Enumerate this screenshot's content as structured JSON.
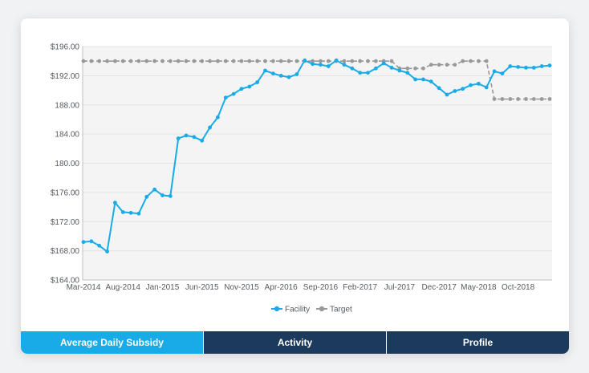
{
  "chart_data": {
    "type": "line",
    "title": "",
    "xlabel": "",
    "ylabel": "",
    "ylim": [
      164,
      196
    ],
    "y_ticks": [
      "$196.00",
      "$192.00",
      "188.00",
      "184.00",
      "180.00",
      "$176.00",
      "$172.00",
      "$168.00",
      "$164.00"
    ],
    "y_tick_values": [
      196,
      192,
      188,
      184,
      180,
      176,
      172,
      168,
      164
    ],
    "x_labels": [
      "Mar-2014",
      "Aug-2014",
      "Jan-2015",
      "Jun-2015",
      "Nov-2015",
      "Apr-2016",
      "Sep-2016",
      "Feb-2017",
      "Jul-2017",
      "Dec-2017",
      "May-2018",
      "Oct-2018"
    ],
    "x_label_positions": [
      0,
      5,
      10,
      15,
      20,
      25,
      30,
      35,
      40,
      45,
      50,
      55
    ],
    "x_count": 60,
    "legend_position": "bottom-center",
    "series": [
      {
        "name": "Facility",
        "color": "#19abe8",
        "values": [
          169.2,
          169.3,
          168.7,
          167.9,
          174.6,
          173.3,
          173.2,
          173.1,
          175.4,
          176.4,
          175.6,
          175.5,
          183.4,
          183.8,
          183.6,
          183.1,
          184.9,
          186.3,
          189.0,
          189.5,
          190.2,
          190.5,
          191.1,
          192.7,
          192.3,
          192.0,
          191.8,
          192.2,
          194.1,
          193.6,
          193.5,
          193.3,
          194.1,
          193.5,
          193.0,
          192.4,
          192.4,
          193.0,
          193.7,
          193.1,
          192.7,
          192.4,
          191.5,
          191.5,
          191.2,
          190.3,
          189.4,
          189.9,
          190.2,
          190.7,
          190.9,
          190.4,
          192.6,
          192.3,
          193.3,
          193.2,
          193.1,
          193.1,
          193.3,
          193.4
        ],
        "labels": [
          "Facility"
        ]
      },
      {
        "name": "Target",
        "color": "#999999",
        "values": [
          194.0,
          194.0,
          194.0,
          194.0,
          194.0,
          194.0,
          194.0,
          194.0,
          194.0,
          194.0,
          194.0,
          194.0,
          194.0,
          194.0,
          194.0,
          194.0,
          194.0,
          194.0,
          194.0,
          194.0,
          194.0,
          194.0,
          194.0,
          194.0,
          194.0,
          194.0,
          194.0,
          194.0,
          194.0,
          194.0,
          194.0,
          194.0,
          194.0,
          194.0,
          194.0,
          194.0,
          194.0,
          194.0,
          194.0,
          194.0,
          193.0,
          193.0,
          193.0,
          193.0,
          193.5,
          193.5,
          193.5,
          193.5,
          194.0,
          194.0,
          194.0,
          194.0,
          188.8,
          188.8,
          188.8,
          188.8,
          188.8,
          188.8,
          188.8,
          188.8
        ]
      }
    ]
  },
  "tabs": [
    {
      "label": "Average Daily Subsidy",
      "active": true
    },
    {
      "label": "Activity",
      "active": false
    },
    {
      "label": "Profile",
      "active": false
    }
  ]
}
